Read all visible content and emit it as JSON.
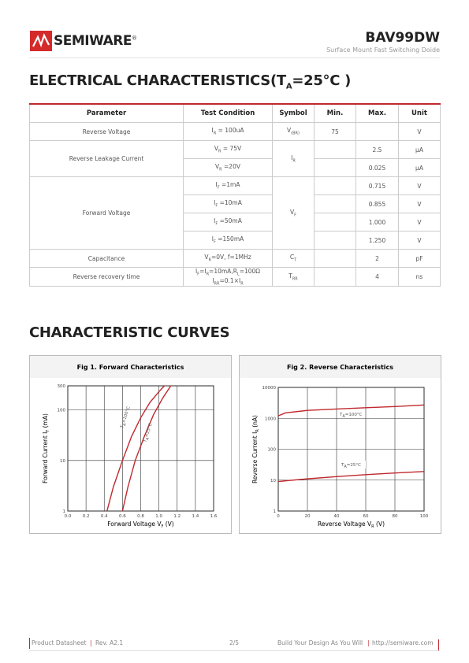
{
  "header": {
    "brand": "SEMIWARE",
    "registered": "®",
    "part": "BAV99DW",
    "subtitle": "Surface Mount Fast Switching Doide"
  },
  "section1_title": [
    "ELECTRICAL CHARACTERISTICS(T",
    "A",
    "=25°C )"
  ],
  "table": {
    "headers": [
      "Parameter",
      "Test Condition",
      "Symbol",
      "Min.",
      "Max.",
      "Unit"
    ],
    "rows": [
      {
        "parameter": "Reverse Voltage",
        "condition": [
          [
            "I",
            "R",
            " = 100uA"
          ]
        ],
        "symbol": [
          "V",
          "(BR)"
        ],
        "min": "75",
        "unit": "V"
      },
      {
        "parameter": "Reverse Leakage Current",
        "condition": [
          [
            "V",
            "R",
            " = 75V"
          ]
        ],
        "symbol": [
          "I",
          "R"
        ],
        "max": "2.5",
        "unit": "μA"
      },
      {
        "condition": [
          [
            "V",
            "R",
            " =20V"
          ]
        ],
        "max": "0.025",
        "unit": "μA"
      },
      {
        "parameter": "Forward Voltage",
        "condition": [
          [
            "I",
            "F",
            " =1mA"
          ]
        ],
        "symbol": [
          "V",
          "F"
        ],
        "max": "0.715",
        "unit": "V"
      },
      {
        "condition": [
          [
            "I",
            "F",
            " =10mA"
          ]
        ],
        "max": "0.855",
        "unit": "V"
      },
      {
        "condition": [
          [
            "I",
            "F",
            " =50mA"
          ]
        ],
        "max": "1.000",
        "unit": "V"
      },
      {
        "condition": [
          [
            "I",
            "F",
            " =150mA"
          ]
        ],
        "max": "1.250",
        "unit": "V"
      },
      {
        "parameter": "Capacitance",
        "condition": [
          [
            "V",
            "R",
            "=0V, f=1MHz"
          ]
        ],
        "symbol": [
          "C",
          "T"
        ],
        "max": "2",
        "unit": "pF"
      },
      {
        "parameter": "Reverse recovery time",
        "condition": [
          [
            "I",
            "F",
            "=I",
            "R",
            "=10mA,R",
            "L",
            "=100Ω"
          ],
          [
            "I",
            "RR",
            "=0.1×I",
            "R"
          ]
        ],
        "symbol": [
          "T",
          "RR"
        ],
        "max": "4",
        "unit": "ns"
      }
    ]
  },
  "section2_title": "CHARACTERISTIC CURVES",
  "chart_data": [
    {
      "type": "line",
      "title": "Fig 1. Forward Characteristics",
      "x_label": [
        "Forward Voltage V",
        "F",
        " (V)"
      ],
      "y_label": [
        "Forward Current I",
        "F",
        " (mA)"
      ],
      "xlim": [
        0,
        1.6
      ],
      "xticks": [
        {
          "value": 0,
          "label": "0.0"
        },
        0.2,
        0.4,
        0.6,
        0.8,
        {
          "value": 1,
          "label": "1.0"
        },
        1.2,
        1.4,
        1.6
      ],
      "ylim": [
        1,
        300
      ],
      "yticks": [
        1,
        10,
        100,
        300
      ],
      "ylog": true,
      "grid": true,
      "series": [
        {
          "label": [
            "T",
            "A",
            "=100°C"
          ],
          "color": "#c0282d",
          "x": [
            0.43,
            0.5,
            0.6,
            0.7,
            0.8,
            0.9,
            1.0,
            1.06
          ],
          "values": [
            1,
            3,
            10,
            30,
            70,
            140,
            230,
            300
          ]
        },
        {
          "label": [
            "T",
            "A",
            "=25°C"
          ],
          "color": "#c0282d",
          "x": [
            0.6,
            0.66,
            0.74,
            0.84,
            0.94,
            1.04,
            1.13
          ],
          "values": [
            1,
            3,
            10,
            30,
            80,
            170,
            300
          ]
        }
      ]
    },
    {
      "type": "line",
      "title": "Fig 2. Reverse Characteristics",
      "x_label": [
        "Reverse Voltage V",
        "R",
        " (V)"
      ],
      "y_label": [
        "Reverse Current I",
        "R",
        " (nA)"
      ],
      "xlim": [
        0,
        100
      ],
      "xticks": [
        0,
        20,
        40,
        60,
        80,
        100
      ],
      "ylim": [
        1,
        10000
      ],
      "yticks": [
        1,
        10,
        100,
        1000,
        10000
      ],
      "ylog": true,
      "grid": true,
      "series": [
        {
          "label": [
            "T",
            "A",
            "=100°C"
          ],
          "color": "#c0282d",
          "x": [
            0,
            5,
            20,
            40,
            60,
            80,
            100
          ],
          "values": [
            1200,
            1500,
            1800,
            2000,
            2200,
            2400,
            2700
          ]
        },
        {
          "label": [
            "T",
            "A",
            "=25°C"
          ],
          "color": "#c0282d",
          "x": [
            0,
            5,
            20,
            40,
            60,
            80,
            100
          ],
          "values": [
            9,
            9.5,
            11,
            13,
            15,
            17,
            19
          ]
        }
      ]
    }
  ],
  "footer": {
    "doc": "Product Datasheet",
    "rev": "Rev. A2.1",
    "page": "2/5",
    "slogan": "Build Your Design As You Will",
    "url": "http://semiware.com"
  }
}
